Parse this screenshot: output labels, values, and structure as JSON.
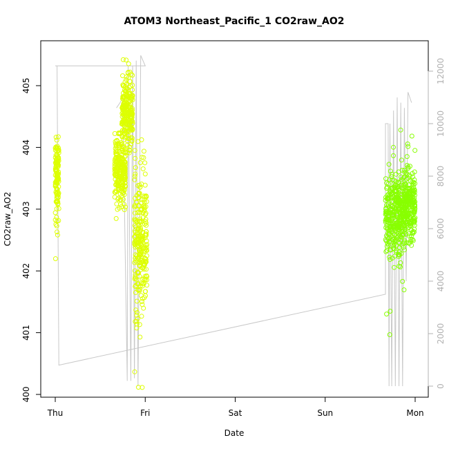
{
  "chart_data": {
    "type": "scatter",
    "title": "ATOM3 Northeast_Pacific_1 CO2raw_AO2",
    "xlabel": "Date",
    "ylabel": "CO2raw_AO2",
    "x_tick_labels": [
      "Thu",
      "Fri",
      "Sat",
      "Sun",
      "Mon"
    ],
    "xlim": [
      "Thu",
      "Mon"
    ],
    "ylim": [
      400,
      405.5
    ],
    "y_ticks": [
      400,
      401,
      402,
      403,
      404,
      405
    ],
    "y2_ticks": [
      0,
      2000,
      4000,
      6000,
      8000,
      10000,
      12000
    ],
    "y2_lim": [
      0,
      12500
    ],
    "grid": false,
    "colors": {
      "early_points": "#ddff00",
      "late_points": "#88ff00",
      "secondary_line": "#c8c8c8",
      "axis_secondary": "#b0b0b0"
    },
    "series": [
      {
        "role": "points",
        "axis": "left",
        "clusters": [
          {
            "x_range_days": [
              0.0,
              0.04
            ],
            "y_center": 403.5,
            "y_spread": 0.55,
            "y_min": 402.1,
            "y_max": 404.3,
            "color": "#ddff00"
          },
          {
            "x_range_days": [
              0.66,
              0.78
            ],
            "y_center": 403.6,
            "y_spread": 0.45,
            "y_min": 402.7,
            "y_max": 404.5,
            "color": "#ddff00"
          },
          {
            "x_range_days": [
              0.74,
              0.86
            ],
            "y_center": 404.6,
            "y_spread": 0.5,
            "y_min": 403.8,
            "y_max": 405.5,
            "color": "#ddff00"
          },
          {
            "x_range_days": [
              0.88,
              1.02
            ],
            "y_center": 402.5,
            "y_spread": 1.0,
            "y_min": 400.1,
            "y_max": 404.4,
            "color": "#ddff00"
          },
          {
            "x_range_days": [
              3.67,
              3.88
            ],
            "y_center": 402.9,
            "y_spread": 0.6,
            "y_min": 400.9,
            "y_max": 404.8,
            "color": "#88ff00"
          },
          {
            "x_range_days": [
              3.88,
              4.0
            ],
            "y_center": 403.1,
            "y_spread": 0.5,
            "y_min": 402.0,
            "y_max": 404.2,
            "color": "#88ff00"
          }
        ]
      },
      {
        "role": "line",
        "axis": "right",
        "color": "#c8c8c8",
        "points": [
          [
            0.0,
            12200
          ],
          [
            0.02,
            12200
          ],
          [
            0.04,
            800
          ],
          [
            3.67,
            3500
          ],
          [
            3.67,
            10000
          ],
          [
            3.7,
            10000
          ],
          [
            3.71,
            0
          ],
          [
            3.72,
            10000
          ],
          [
            3.74,
            0
          ],
          [
            3.76,
            10500
          ],
          [
            3.78,
            0
          ],
          [
            3.8,
            11000
          ],
          [
            3.82,
            0
          ],
          [
            3.84,
            10800
          ],
          [
            3.86,
            0
          ],
          [
            3.88,
            10600
          ],
          [
            3.9,
            4000
          ],
          [
            3.92,
            11200
          ],
          [
            3.94,
            11000
          ],
          [
            3.96,
            10800
          ]
        ]
      },
      {
        "role": "line",
        "axis": "right",
        "color": "#c8c8c8",
        "points": [
          [
            0.68,
            10600
          ],
          [
            0.72,
            10800
          ],
          [
            0.75,
            11000
          ],
          [
            0.8,
            200
          ],
          [
            0.81,
            12200
          ],
          [
            0.84,
            200
          ],
          [
            0.86,
            12200
          ],
          [
            0.88,
            300
          ],
          [
            0.9,
            12400
          ],
          [
            0.92,
            0
          ],
          [
            0.95,
            12600
          ],
          [
            1.0,
            12200
          ],
          [
            0.55,
            12200
          ],
          [
            0.02,
            12200
          ]
        ]
      }
    ]
  }
}
